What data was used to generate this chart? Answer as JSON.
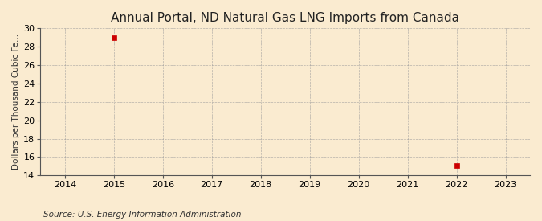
{
  "title": "Annual Portal, ND Natural Gas LNG Imports from Canada",
  "ylabel": "Dollars per Thousand Cubic Fe...",
  "source": "Source: U.S. Energy Information Administration",
  "x_data": [
    2015,
    2022
  ],
  "y_data": [
    29.0,
    15.1
  ],
  "xlim": [
    2013.5,
    2023.5
  ],
  "ylim": [
    14,
    30
  ],
  "xticks": [
    2014,
    2015,
    2016,
    2017,
    2018,
    2019,
    2020,
    2021,
    2022,
    2023
  ],
  "yticks": [
    14,
    16,
    18,
    20,
    22,
    24,
    26,
    28,
    30
  ],
  "marker_color": "#cc0000",
  "marker": "s",
  "marker_size": 4,
  "bg_color": "#faebd0",
  "plot_bg_color": "#faebd0",
  "grid_color": "#999999",
  "title_fontsize": 11,
  "axis_label_fontsize": 7.5,
  "tick_fontsize": 8,
  "source_fontsize": 7.5
}
